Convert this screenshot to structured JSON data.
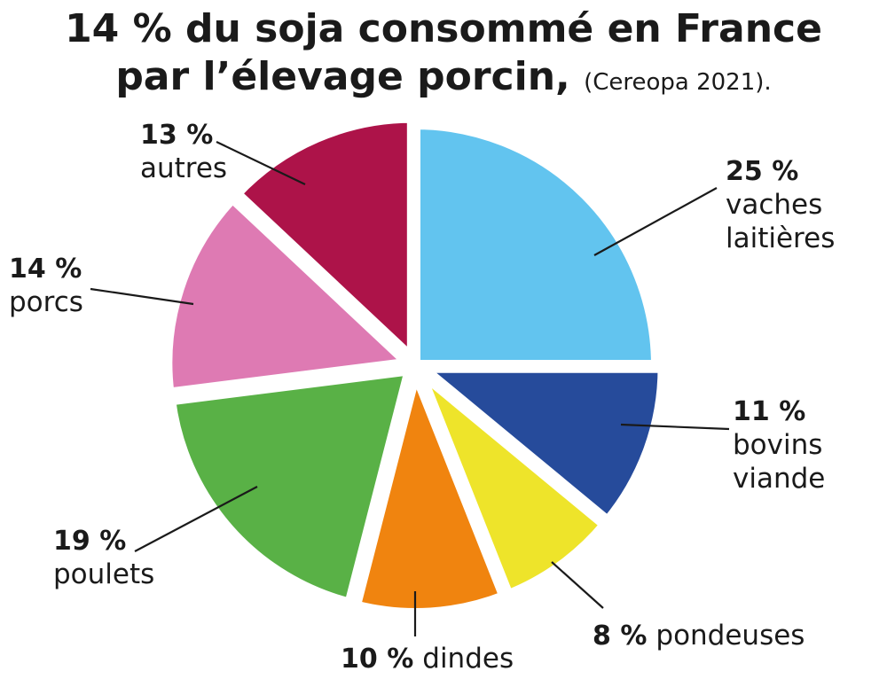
{
  "title": {
    "line1": "14 % du soja consommé en France",
    "line2": "par l’élevage porcin,",
    "source": "(Cereopa 2021)."
  },
  "chart_data": {
    "type": "pie",
    "title": "14 % du soja consommé en France par l’élevage porcin, (Cereopa 2021).",
    "slices": [
      {
        "name": "vaches laitières",
        "value": 25,
        "pct_label": "25 %",
        "label_lines": [
          "vaches",
          "laitières"
        ],
        "color": "#62c4ef",
        "exploded": false
      },
      {
        "name": "bovins viande",
        "value": 11,
        "pct_label": "11 %",
        "label_lines": [
          "bovins",
          "viande"
        ],
        "color": "#264b9b",
        "exploded": true
      },
      {
        "name": "pondeuses",
        "value": 8,
        "pct_label": "8 %",
        "label_lines": [
          "pondeuses"
        ],
        "color": "#eee42a",
        "exploded": true
      },
      {
        "name": "dindes",
        "value": 10,
        "pct_label": "10 %",
        "label_lines": [
          "dindes"
        ],
        "color": "#f0840f",
        "exploded": true
      },
      {
        "name": "poulets",
        "value": 19,
        "pct_label": "19 %",
        "label_lines": [
          "poulets"
        ],
        "color": "#59b146",
        "exploded": true
      },
      {
        "name": "porcs",
        "value": 14,
        "pct_label": "14 %",
        "label_lines": [
          "porcs"
        ],
        "color": "#de7ab3",
        "exploded": true
      },
      {
        "name": "autres",
        "value": 13,
        "pct_label": "13 %",
        "label_lines": [
          "autres"
        ],
        "color": "#ad1349",
        "exploded": true
      }
    ]
  }
}
